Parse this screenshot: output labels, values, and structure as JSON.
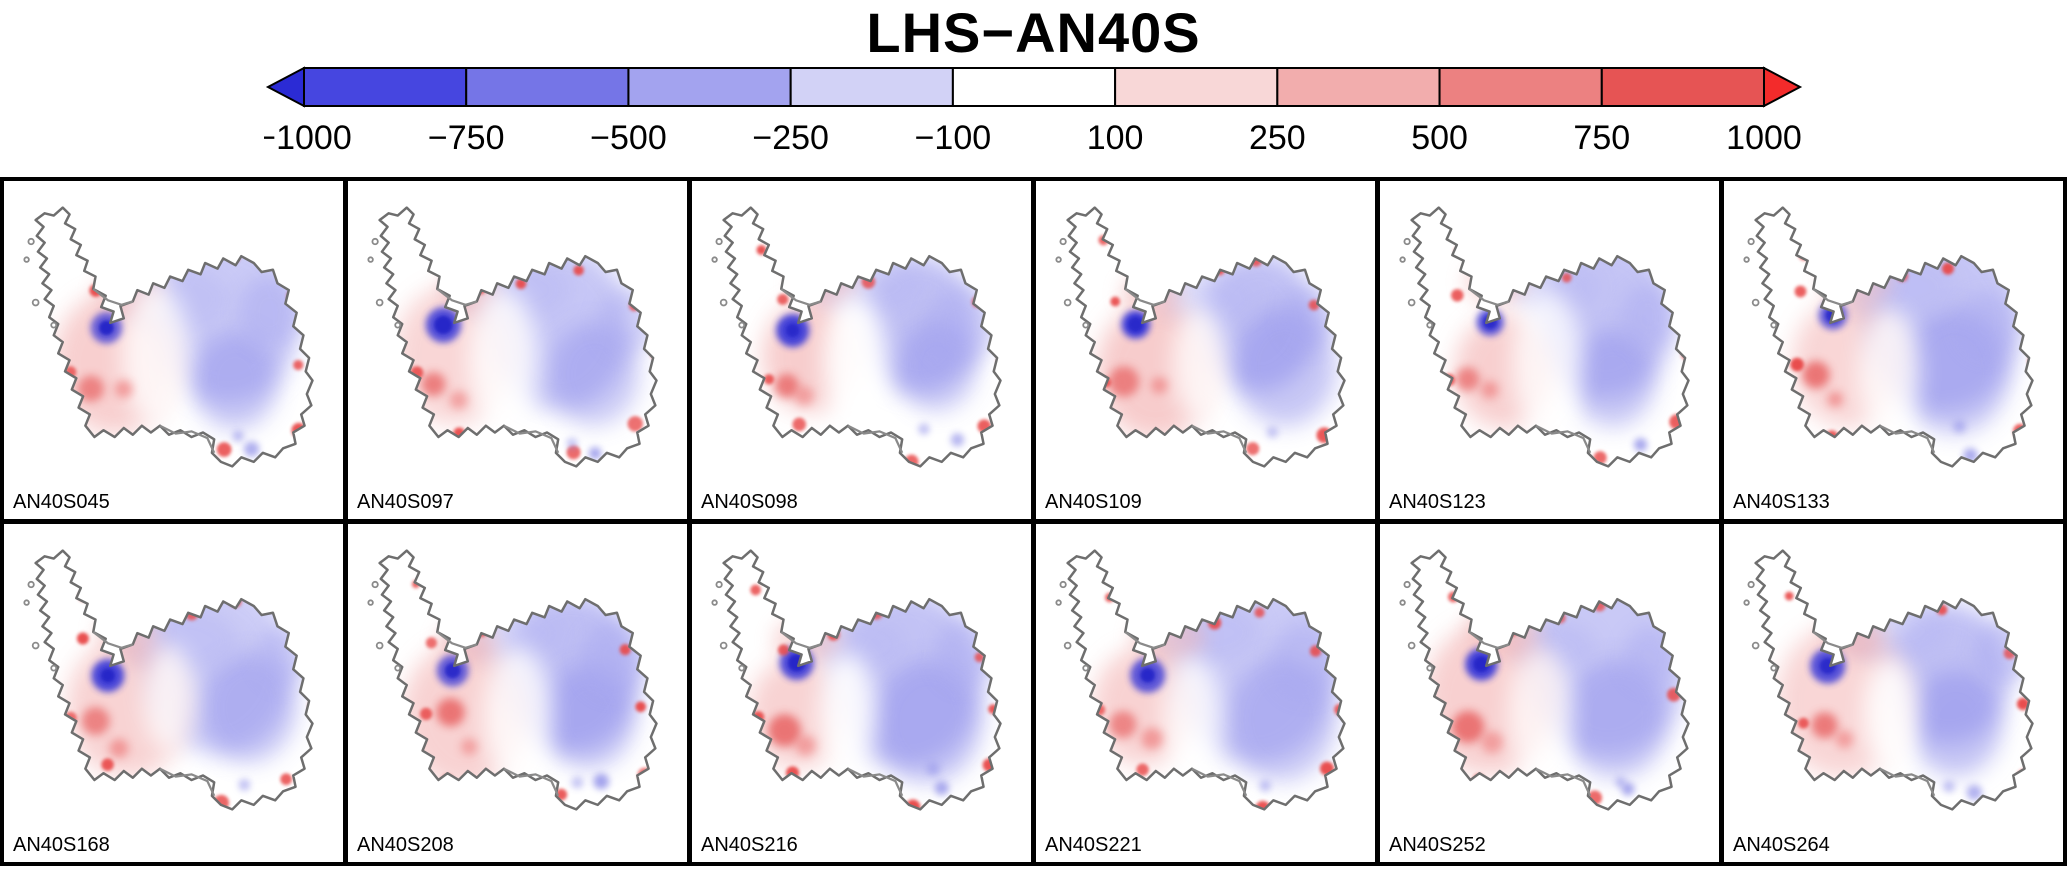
{
  "title": "LHS−AN40S",
  "chart_data": {
    "type": "heatmap",
    "title": "LHS−AN40S",
    "region": "Antarctica",
    "description": "Difference maps (LHS minus AN40S) over Antarctica for 12 ensemble members, diverging blue-white-red color scale",
    "layout": {
      "rows": 2,
      "cols": 6,
      "legend_position": "top",
      "grid": false
    },
    "colorbar": {
      "orientation": "horizontal",
      "extend": "both",
      "levels": [
        -1000,
        -750,
        -500,
        -250,
        -100,
        100,
        250,
        500,
        750,
        1000
      ],
      "tick_labels": [
        "−1000",
        "−750",
        "−500",
        "−250",
        "−100",
        "100",
        "250",
        "500",
        "750",
        "1000"
      ],
      "segment_colors": [
        "#4646e0",
        "#7575e7",
        "#a3a3ef",
        "#d2d2f6",
        "#ffffff",
        "#f8d7d7",
        "#f2adad",
        "#ec8181",
        "#e65454"
      ],
      "arrow_left_color": "#2b2bd5",
      "arrow_right_color": "#f32b2b"
    },
    "panels": [
      "AN40S045",
      "AN40S097",
      "AN40S098",
      "AN40S109",
      "AN40S123",
      "AN40S133",
      "AN40S168",
      "AN40S208",
      "AN40S216",
      "AN40S221",
      "AN40S252",
      "AN40S264"
    ],
    "colors": {
      "coastline": "#6e6e6e",
      "ice_shelf_line": "#8a8a8a",
      "panel_border": "#000000",
      "background": "#ffffff"
    }
  }
}
